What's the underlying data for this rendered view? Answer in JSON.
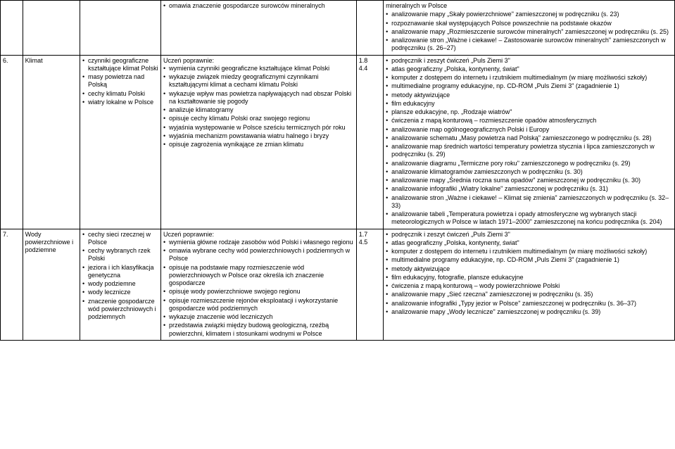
{
  "columns": {
    "c1_w": "3.3%",
    "c2_w": "8.5%",
    "c3_w": "12%",
    "c4_w": "29%",
    "c5_w": "4%",
    "c6_w": "43.2%"
  },
  "r0": {
    "c4": [
      "omawia znaczenie gospodarcze surowców mineralnych"
    ],
    "c6": [
      "mineralnych w Polsce",
      "analizowanie mapy „Skały powierzchniowe\" zamieszczonej w podręczniku (s. 23)",
      "rozpoznawanie skał występujących Polsce powszechnie na podstawie okazów",
      "analizowanie mapy „Rozmieszczenie surowców mineralnych\" zamieszczonej w podręczniku (s. 25)",
      "analizowanie stron „Ważne i ciekawe! – Zastosowanie surowców mineralnych\" zamieszczonych w podręczniku (s. 26–27)"
    ],
    "c6_first_plain": true
  },
  "r1": {
    "num": "6.",
    "title": "Klimat",
    "c3": [
      "czynniki geograficzne kształtujące klimat Polski",
      "masy powietrza nad Polską",
      "cechy klimatu Polski",
      "wiatry lokalne w Polsce"
    ],
    "c4_pre": "Uczeń poprawnie:",
    "c4": [
      "wymienia czynniki geograficzne kształtujące klimat Polski",
      "wykazuje związek miedzy geograficznymi czynnikami kształtującymi klimat a cechami klimatu Polski",
      "wykazuje wpływ mas powietrza napływających nad obszar Polski na kształtowanie się pogody",
      "analizuje klimatogramy",
      "opisuje cechy klimatu Polski oraz swojego regionu",
      "wyjaśnia występowanie w Polsce sześciu termicznych pór roku",
      "wyjaśnia mechanizm powstawania wiatru halnego i bryzy",
      "opisuje zagrożenia wynikające ze zmian klimatu"
    ],
    "c5": [
      "1.8",
      "4.4"
    ],
    "c6": [
      "podręcznik i zeszyt ćwiczeń „Puls Ziemi 3\"",
      "atlas geograficzny „Polska, kontynenty, świat\"",
      "komputer z dostępem do internetu i rzutnikiem multimedialnym (w miarę możliwości szkoły)",
      "multimedialne programy edukacyjne, np. CD-ROM „Puls Ziemi 3\" (zagadnienie 1)",
      "metody aktywizujące",
      "film edukacyjny",
      "plansze edukacyjne, np. „Rodzaje wiatrów\"",
      "ćwiczenia z mapą konturową – rozmieszczenie opadów atmosferycznych",
      "analizowanie map ogólnogeograficznych Polski i Europy",
      "analizowanie schematu „Masy powietrza nad Polską\" zamieszczonego w podręczniku (s. 28)",
      "analizowanie map średnich wartości temperatury powietrza stycznia i lipca zamieszczonych w podręczniku (s. 29)",
      "analizowanie diagramu „Termiczne pory roku\" zamieszczonego w podręczniku (s. 29)",
      "analizowanie klimatogramów zamieszczonych w podręczniku (s. 30)",
      "analizowanie mapy „Średnia roczna suma opadów\" zamieszczonej w podręczniku (s. 30)",
      "analizowanie infografiki „Wiatry lokalne\" zamieszczonej w podręczniku (s. 31)",
      "analizowanie stron „Ważne i ciekawe! – Klimat się zmienia\" zamieszczonych w podręczniku (s. 32–33)",
      "analizowanie tabeli „Temperatura powietrza i opady atmosferyczne wg wybranych stacji meteorologicznych w Polsce w latach 1971–2000\" zamieszczonej na końcu podręcznika (s. 204)"
    ]
  },
  "r2": {
    "num": "7.",
    "title": "Wody powierzchniowe i podziemne",
    "c3": [
      "cechy sieci rzecznej w Polsce",
      "cechy wybranych rzek Polski",
      "jeziora i ich klasyfikacja genetyczna",
      "wody podziemne",
      "wody lecznicze",
      "znaczenie gospodarcze wód powierzchniowych i podziemnych"
    ],
    "c4_pre": "Uczeń poprawnie:",
    "c4": [
      "wymienia główne rodzaje zasobów wód Polski i własnego regionu",
      "omawia wybrane cechy wód powierzchniowych i podziemnych w Polsce",
      "opisuje na podstawie mapy rozmieszczenie wód powierzchniowych w Polsce oraz określa ich znaczenie gospodarcze",
      "opisuje wody powierzchniowe swojego regionu",
      "opisuje rozmieszczenie rejonów eksploatacji i wykorzystanie gospodarcze wód podziemnych",
      "wykazuje znaczenie wód leczniczych",
      "przedstawia związki między budową geologiczną, rzeźbą powierzchni, klimatem i stosunkami wodnymi w Polsce"
    ],
    "c5": [
      "1.7",
      "4.5"
    ],
    "c6": [
      "podręcznik i zeszyt ćwiczeń „Puls Ziemi 3\"",
      "atlas geograficzny „Polska, kontynenty, świat\"",
      "komputer z dostępem do internetu i rzutnikiem multimedialnym (w miarę możliwości szkoły)",
      "multimedialne programy edukacyjne, np. CD-ROM „Puls Ziemi 3\" (zagadnienie 1)",
      "metody aktywizujące",
      "film edukacyjny, fotografie, plansze edukacyjne",
      "ćwiczenia z mapą konturową – wody powierzchniowe Polski",
      "analizowanie mapy „Sieć rzeczna\" zamieszczonej w podręczniku (s. 35)",
      "analizowanie infografiki „Typy jezior w Polsce\" zamieszczonej w podręczniku (s. 36–37)",
      "analizowanie mapy „Wody lecznicze\" zamieszczonej w podręczniku (s. 39)"
    ]
  }
}
